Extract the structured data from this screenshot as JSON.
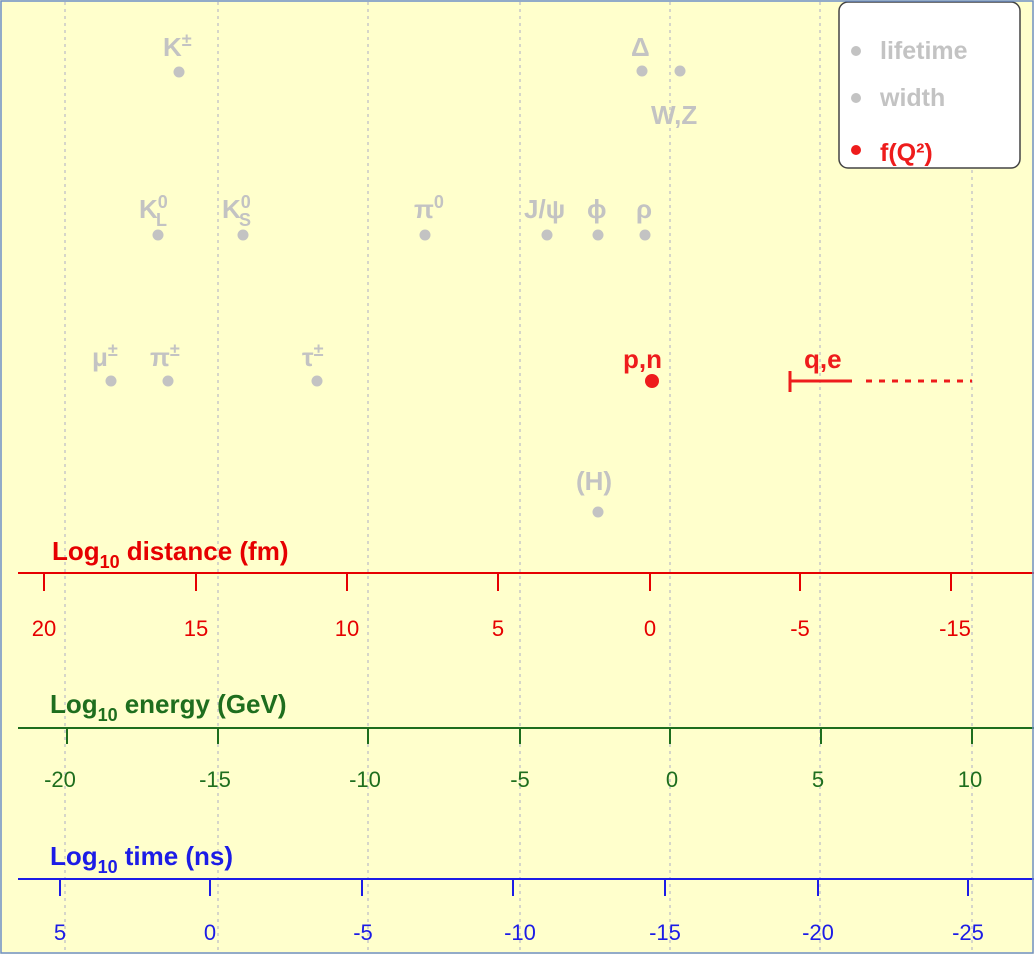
{
  "colors": {
    "background": "#ffffcc",
    "frame": "#6f8fc6",
    "grid": "#c8c8c8",
    "inactive": "#c3c3c3",
    "active": "#ee1c1c",
    "distance_axis": "#e60000",
    "energy_axis": "#1e6e1e",
    "time_axis": "#1c1ce6"
  },
  "legend": {
    "items": [
      {
        "label": "lifetime",
        "color": "#c3c3c3"
      },
      {
        "label": "width",
        "color": "#c3c3c3"
      },
      {
        "label": "f(Q²)",
        "color": "#ee1c1c"
      }
    ]
  },
  "particles": {
    "k_pm": {
      "base": "K",
      "sup": "±"
    },
    "delta": {
      "base": "Δ"
    },
    "wz": {
      "base": "W,Z"
    },
    "k0l": {
      "base": "K",
      "sup": "0",
      "sub": "L"
    },
    "k0s": {
      "base": "K",
      "sup": "0",
      "sub": "S"
    },
    "pi0": {
      "base": "π",
      "sup": "0"
    },
    "jpsi": {
      "base": "J/ψ"
    },
    "phi": {
      "base": "ϕ"
    },
    "rho": {
      "base": "ρ"
    },
    "mu_pm": {
      "base": "μ",
      "sup": "±"
    },
    "pi_pm": {
      "base": "π",
      "sup": "±"
    },
    "tau_pm": {
      "base": "τ",
      "sup": "±"
    },
    "pn": {
      "base": "p,n"
    },
    "qe": {
      "base": "q,e"
    },
    "higgs": {
      "base": "(H)"
    }
  },
  "axes": {
    "distance": {
      "log": "Log",
      "sub": "10",
      "title": "distance (fm)",
      "ticks": [
        "20",
        "15",
        "10",
        "5",
        "0",
        "-5",
        "-15"
      ]
    },
    "energy": {
      "log": "Log",
      "sub": "10",
      "title": "energy (GeV)",
      "ticks": [
        "-20",
        "-15",
        "-10",
        "-5",
        "0",
        "5",
        "10"
      ]
    },
    "time": {
      "log": "Log",
      "sub": "10",
      "title": "time (ns)",
      "ticks": [
        "5",
        "0",
        "-5",
        "-10",
        "-15",
        "-20",
        "-25"
      ]
    }
  }
}
